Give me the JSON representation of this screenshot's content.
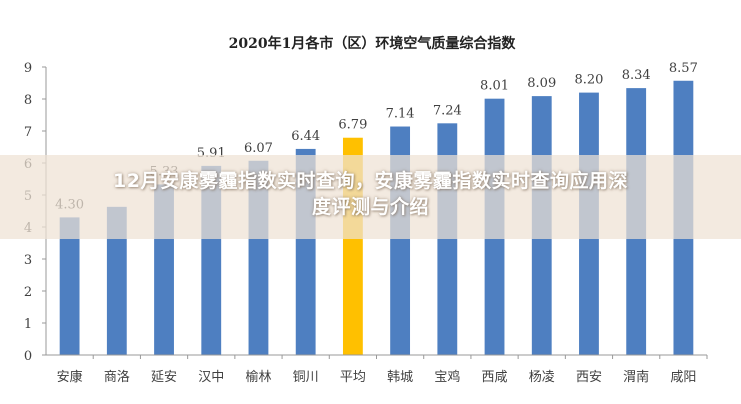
{
  "chart_data": {
    "type": "bar",
    "title": "2020年1月各市（区）环境空气质量综合指数",
    "categories": [
      "安康",
      "商洛",
      "延安",
      "汉中",
      "榆林",
      "铜川",
      "平均",
      "韩城",
      "宝鸡",
      "西咸",
      "杨凌",
      "西安",
      "渭南",
      "咸阳"
    ],
    "values": [
      4.3,
      4.63,
      5.33,
      5.91,
      6.07,
      6.44,
      6.79,
      7.14,
      7.24,
      8.01,
      8.09,
      8.2,
      8.34,
      8.57
    ],
    "data_labels": [
      "4.30",
      "",
      "5.33",
      "5.91",
      "6.07",
      "6.44",
      "6.79",
      "7.14",
      "7.24",
      "8.01",
      "8.09",
      "8.20",
      "8.34",
      "8.57"
    ],
    "highlight_index": 6,
    "ylim": [
      0,
      9
    ],
    "yticks": [
      "0",
      "1",
      "2",
      "3",
      "4",
      "5",
      "6",
      "7",
      "8",
      "9"
    ],
    "grid": false,
    "legend": "none",
    "colors": {
      "bar": "#4E7FC1",
      "highlight": "#FFC000",
      "text": "#404040",
      "axis": "#999999"
    }
  },
  "overlay": {
    "line1": "12月安康雾霾指数实时查询，安康雾霾指数实时查询应用深",
    "line2": "度评测与介绍"
  }
}
